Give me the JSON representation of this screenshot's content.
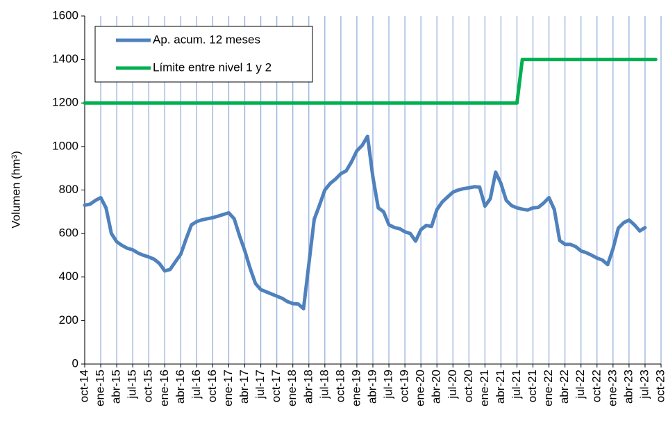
{
  "chart_data": {
    "type": "line",
    "y_label": "Volumen (hm³)",
    "categories": [
      "oct-14",
      null,
      null,
      "ene-15",
      null,
      null,
      "abr-15",
      null,
      null,
      "jul-15",
      null,
      null,
      "oct-15",
      null,
      null,
      "ene-16",
      null,
      null,
      "abr-16",
      null,
      null,
      "jul-16",
      null,
      null,
      "oct-16",
      null,
      null,
      "ene-17",
      null,
      null,
      "abr-17",
      null,
      null,
      "jul-17",
      null,
      null,
      "oct-17",
      null,
      null,
      "ene-18",
      null,
      null,
      "abr-18",
      null,
      null,
      "jul-18",
      null,
      null,
      "oct-18",
      null,
      null,
      "ene-19",
      null,
      null,
      "abr-19",
      null,
      null,
      "jul-19",
      null,
      null,
      "oct-19",
      null,
      null,
      "ene-20",
      null,
      null,
      "abr-20",
      null,
      null,
      "jul-20",
      null,
      null,
      "oct-20",
      null,
      null,
      "ene-21",
      null,
      null,
      "abr-21",
      null,
      null,
      "jul-21",
      null,
      null,
      "oct-21",
      null,
      null,
      "ene-22",
      null,
      null,
      "abr-22",
      null,
      null,
      "jul-22",
      null,
      null,
      "oct-22",
      null,
      null,
      "ene-23",
      null,
      null,
      "abr-23",
      null,
      null,
      "jul-23",
      null,
      null,
      "oct-23"
    ],
    "series": [
      {
        "name": "Ap. acum. 12 meses",
        "color": "#4f81bd",
        "values": [
          730,
          735,
          752,
          765,
          718,
          600,
          562,
          545,
          532,
          525,
          510,
          500,
          492,
          482,
          462,
          428,
          435,
          470,
          505,
          575,
          640,
          655,
          663,
          668,
          673,
          680,
          688,
          695,
          668,
          590,
          520,
          440,
          370,
          342,
          332,
          322,
          312,
          302,
          287,
          278,
          276,
          255,
          460,
          665,
          730,
          800,
          830,
          850,
          875,
          888,
          930,
          980,
          1005,
          1047,
          860,
          718,
          700,
          640,
          628,
          622,
          608,
          600,
          565,
          618,
          637,
          633,
          710,
          745,
          768,
          790,
          800,
          806,
          810,
          815,
          813,
          726,
          760,
          882,
          830,
          752,
          728,
          718,
          712,
          708,
          718,
          720,
          740,
          765,
          710,
          568,
          550,
          550,
          540,
          520,
          512,
          500,
          487,
          478,
          457,
          530,
          625,
          650,
          662,
          640,
          612,
          627,
          null,
          null,
          null
        ]
      },
      {
        "name": "Límite entre nivel 1 y 2",
        "color": "#00b050",
        "values": [
          1200,
          1200,
          1200,
          1200,
          1200,
          1200,
          1200,
          1200,
          1200,
          1200,
          1200,
          1200,
          1200,
          1200,
          1200,
          1200,
          1200,
          1200,
          1200,
          1200,
          1200,
          1200,
          1200,
          1200,
          1200,
          1200,
          1200,
          1200,
          1200,
          1200,
          1200,
          1200,
          1200,
          1200,
          1200,
          1200,
          1200,
          1200,
          1200,
          1200,
          1200,
          1200,
          1200,
          1200,
          1200,
          1200,
          1200,
          1200,
          1200,
          1200,
          1200,
          1200,
          1200,
          1200,
          1200,
          1200,
          1200,
          1200,
          1200,
          1200,
          1200,
          1200,
          1200,
          1200,
          1200,
          1200,
          1200,
          1200,
          1200,
          1200,
          1200,
          1200,
          1200,
          1200,
          1200,
          1200,
          1200,
          1200,
          1200,
          1200,
          1200,
          1200,
          1400,
          1400,
          1400,
          1400,
          1400,
          1400,
          1400,
          1400,
          1400,
          1400,
          1400,
          1400,
          1400,
          1400,
          1400,
          1400,
          1400,
          1400,
          1400,
          1400,
          1400,
          1400,
          1400,
          1400,
          1400,
          1400,
          null
        ]
      }
    ],
    "ylim": [
      0,
      1600
    ],
    "yticks": [
      0,
      200,
      400,
      600,
      800,
      1000,
      1200,
      1400,
      1600
    ],
    "grid": "x",
    "legend": "upper left"
  }
}
